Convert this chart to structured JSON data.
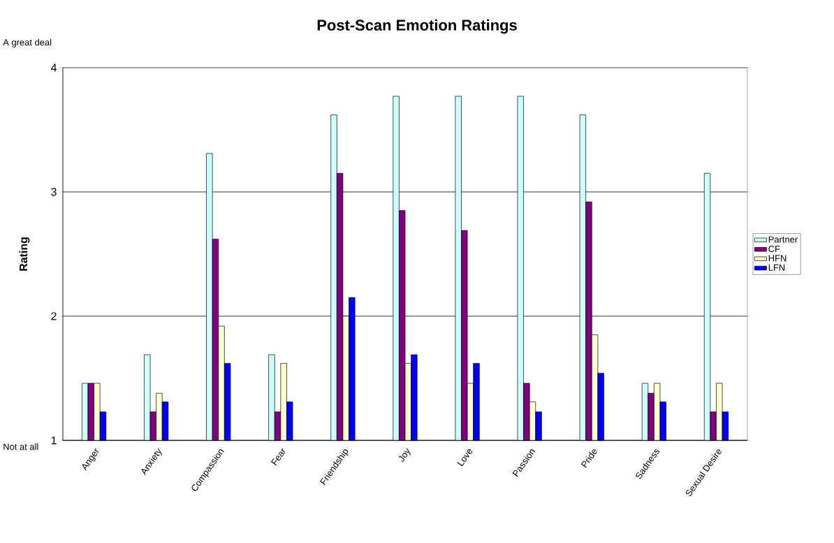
{
  "chart_data": {
    "type": "bar",
    "title": "Post-Scan Emotion Ratings",
    "ylabel": "Rating",
    "annotations": [
      "A great deal",
      "Not at all"
    ],
    "categories": [
      "Anger",
      "Anxiety",
      "Compassion",
      "Fear",
      "Friendship",
      "Joy",
      "Love",
      "Passion",
      "Pride",
      "Sadness",
      "Sexual Desire"
    ],
    "series": [
      {
        "name": "Partner",
        "color": "#ccffff",
        "values": [
          1.46,
          1.69,
          3.31,
          1.69,
          3.62,
          3.77,
          3.77,
          3.77,
          3.62,
          1.46,
          3.15
        ]
      },
      {
        "name": "CF",
        "color": "#800080",
        "values": [
          1.46,
          1.23,
          2.62,
          1.23,
          3.15,
          2.85,
          2.69,
          1.46,
          2.92,
          1.38,
          1.23
        ]
      },
      {
        "name": "HFN",
        "color": "#ffffcc",
        "values": [
          1.46,
          1.38,
          1.92,
          1.62,
          2.0,
          1.62,
          1.46,
          1.31,
          1.85,
          1.46,
          1.46
        ]
      },
      {
        "name": "LFN",
        "color": "#0000ff",
        "values": [
          1.23,
          1.31,
          1.62,
          1.31,
          2.15,
          1.69,
          1.62,
          1.23,
          1.54,
          1.31,
          1.23
        ]
      }
    ],
    "ylim": [
      1,
      4
    ],
    "yticks": [
      1,
      2,
      3,
      4
    ],
    "grid": "y",
    "legend": "right"
  }
}
